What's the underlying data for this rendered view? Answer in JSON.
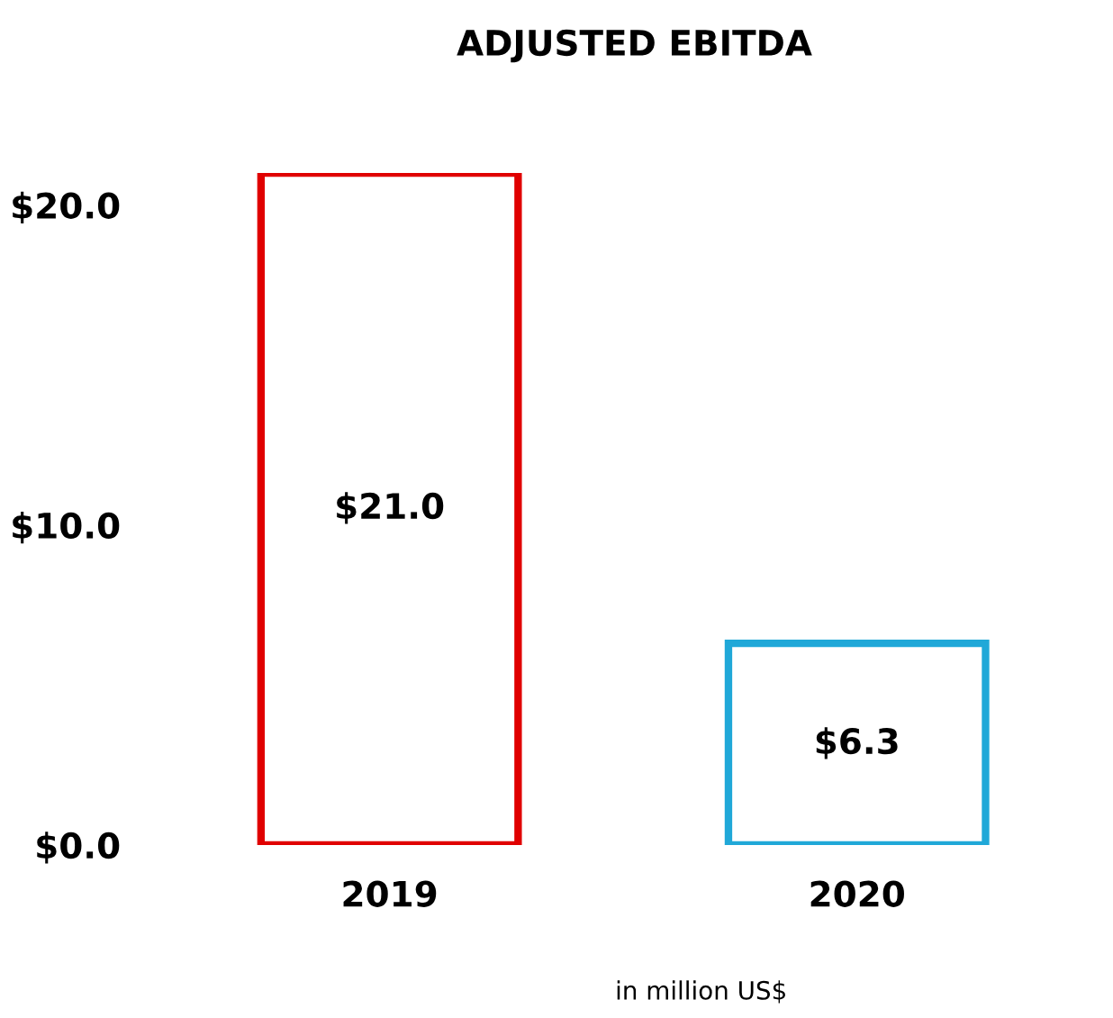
{
  "chart_data": {
    "type": "bar",
    "title": "ADJUSTED EBITDA",
    "categories": [
      "2019",
      "2020"
    ],
    "values": [
      21.0,
      6.3
    ],
    "value_labels": [
      "$21.0",
      "$6.3"
    ],
    "colors": [
      "#e00000",
      "#20a8d8"
    ],
    "ylim": [
      0,
      21
    ],
    "yticks": [
      {
        "value": 0,
        "label": "$0.0"
      },
      {
        "value": 10,
        "label": "$10.0"
      },
      {
        "value": 20,
        "label": "$20.0"
      }
    ],
    "grid": false,
    "annotations": [
      "in million US$"
    ]
  }
}
